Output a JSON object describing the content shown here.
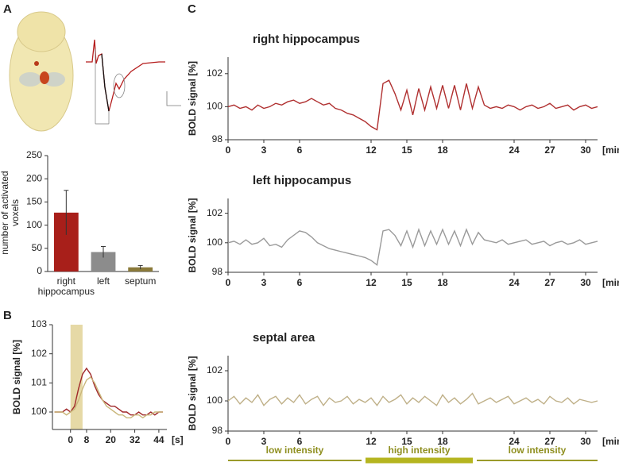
{
  "panels": [
    "A",
    "B",
    "C"
  ],
  "protocol": [
    "low intensity",
    "high intensity",
    "low intensity"
  ],
  "chart_data": [
    {
      "type": "bar",
      "ylabel": "number of activated voxels",
      "categories": [
        "right hippocampus",
        "left",
        "septum"
      ],
      "values": [
        127,
        42,
        9
      ],
      "errors": [
        48,
        12,
        4
      ],
      "colors": [
        "#a81f1a",
        "#8c8c8c",
        "#8a7a3a"
      ],
      "ylim": [
        0,
        250
      ],
      "yticks": [
        0,
        50,
        100,
        150,
        200,
        250
      ]
    },
    {
      "type": "line",
      "ylabel": "BOLD signal [%]",
      "xlabel": "[s]",
      "shade": [
        0,
        6
      ],
      "shade_color": "#e6d9a6",
      "x": [
        -8,
        -6,
        -4,
        -2,
        0,
        2,
        4,
        6,
        8,
        10,
        12,
        14,
        16,
        18,
        20,
        22,
        24,
        26,
        28,
        30,
        32,
        34,
        36,
        38,
        40,
        42,
        44,
        46
      ],
      "series": [
        {
          "color": "#a0282a",
          "values": [
            100,
            100,
            100,
            100.1,
            100,
            100.2,
            100.8,
            101.3,
            101.5,
            101.3,
            100.9,
            100.6,
            100.4,
            100.3,
            100.2,
            100.2,
            100.1,
            100,
            100,
            99.9,
            99.9,
            100,
            99.9,
            99.9,
            100,
            99.9,
            100,
            100
          ]
        },
        {
          "color": "#c9b67a",
          "values": [
            100,
            100,
            100,
            99.9,
            100,
            100.1,
            100.4,
            100.8,
            101.1,
            101.2,
            101,
            100.7,
            100.4,
            100.2,
            100.1,
            100,
            99.9,
            99.9,
            99.8,
            99.8,
            99.9,
            99.9,
            99.8,
            99.9,
            99.9,
            100,
            100,
            100
          ]
        }
      ],
      "xlim": [
        -9,
        48
      ],
      "xticks": [
        0,
        8,
        20,
        32,
        44
      ],
      "ylim": [
        99.4,
        103
      ],
      "yticks": [
        100,
        101,
        102,
        103
      ]
    },
    {
      "type": "line",
      "title": "right hippocampus",
      "ylabel": "BOLD signal [%]",
      "xlabel": "[min]",
      "x": [
        0,
        0.5,
        1,
        1.5,
        2,
        2.5,
        3,
        3.5,
        4,
        4.5,
        5,
        5.5,
        6,
        6.5,
        7,
        7.5,
        8,
        8.5,
        9,
        9.5,
        10,
        10.5,
        11,
        11.5,
        12,
        12.5,
        13,
        13.5,
        14,
        14.5,
        15,
        15.5,
        16,
        16.5,
        17,
        17.5,
        18,
        18.5,
        19,
        19.5,
        20,
        20.5,
        21,
        21.5,
        22,
        22.5,
        23,
        23.5,
        24,
        24.5,
        25,
        25.5,
        26,
        26.5,
        27,
        27.5,
        28,
        28.5,
        29,
        29.5,
        30,
        30.5,
        31
      ],
      "series": [
        {
          "color": "#b03030",
          "values": [
            100,
            100.1,
            99.9,
            100,
            99.8,
            100.1,
            99.9,
            100,
            100.2,
            100.1,
            100.3,
            100.4,
            100.2,
            100.3,
            100.5,
            100.3,
            100.1,
            100.2,
            99.9,
            99.8,
            99.6,
            99.5,
            99.3,
            99.1,
            98.8,
            98.6,
            101.4,
            101.6,
            100.8,
            99.8,
            101,
            99.5,
            101.1,
            99.8,
            101.2,
            99.9,
            101.3,
            99.9,
            101.3,
            99.8,
            101.4,
            99.9,
            101.2,
            100.1,
            99.9,
            100,
            99.9,
            100.1,
            100,
            99.8,
            100,
            100.1,
            99.9,
            100,
            100.2,
            99.9,
            100,
            100.1,
            99.8,
            100,
            100.1,
            99.9,
            100
          ]
        }
      ],
      "xlim": [
        0,
        31
      ],
      "xticks": [
        0,
        3,
        6,
        12,
        15,
        18,
        24,
        27,
        30
      ],
      "ylim": [
        98,
        103
      ],
      "yticks": [
        98,
        100,
        102
      ]
    },
    {
      "type": "line",
      "title": "left hippocampus",
      "ylabel": "BOLD signal [%]",
      "xlabel": "[min]",
      "x": [
        0,
        0.5,
        1,
        1.5,
        2,
        2.5,
        3,
        3.5,
        4,
        4.5,
        5,
        5.5,
        6,
        6.5,
        7,
        7.5,
        8,
        8.5,
        9,
        9.5,
        10,
        10.5,
        11,
        11.5,
        12,
        12.5,
        13,
        13.5,
        14,
        14.5,
        15,
        15.5,
        16,
        16.5,
        17,
        17.5,
        18,
        18.5,
        19,
        19.5,
        20,
        20.5,
        21,
        21.5,
        22,
        22.5,
        23,
        23.5,
        24,
        24.5,
        25,
        25.5,
        26,
        26.5,
        27,
        27.5,
        28,
        28.5,
        29,
        29.5,
        30,
        30.5,
        31
      ],
      "series": [
        {
          "color": "#9a9a9a",
          "values": [
            100,
            100.1,
            99.9,
            100.2,
            99.9,
            100,
            100.3,
            99.8,
            99.9,
            99.7,
            100.2,
            100.5,
            100.8,
            100.7,
            100.4,
            100,
            99.8,
            99.6,
            99.5,
            99.4,
            99.3,
            99.2,
            99.1,
            99,
            98.8,
            98.5,
            100.8,
            100.9,
            100.5,
            99.8,
            100.8,
            99.7,
            100.9,
            99.8,
            100.8,
            99.9,
            100.9,
            99.9,
            100.8,
            99.8,
            100.9,
            99.9,
            100.7,
            100.2,
            100.1,
            100,
            100.2,
            99.9,
            100,
            100.1,
            100.2,
            99.9,
            100,
            100.1,
            99.8,
            100,
            100.1,
            99.9,
            100,
            100.2,
            99.9,
            100,
            100.1
          ]
        }
      ],
      "xlim": [
        0,
        31
      ],
      "xticks": [
        0,
        3,
        6,
        12,
        15,
        18,
        24,
        27,
        30
      ],
      "ylim": [
        98,
        103
      ],
      "yticks": [
        98,
        100,
        102
      ]
    },
    {
      "type": "line",
      "title": "septal area",
      "ylabel": "BOLD signal [%]",
      "xlabel": "[min]",
      "x": [
        0,
        0.5,
        1,
        1.5,
        2,
        2.5,
        3,
        3.5,
        4,
        4.5,
        5,
        5.5,
        6,
        6.5,
        7,
        7.5,
        8,
        8.5,
        9,
        9.5,
        10,
        10.5,
        11,
        11.5,
        12,
        12.5,
        13,
        13.5,
        14,
        14.5,
        15,
        15.5,
        16,
        16.5,
        17,
        17.5,
        18,
        18.5,
        19,
        19.5,
        20,
        20.5,
        21,
        21.5,
        22,
        22.5,
        23,
        23.5,
        24,
        24.5,
        25,
        25.5,
        26,
        26.5,
        27,
        27.5,
        28,
        28.5,
        29,
        29.5,
        30,
        30.5,
        31
      ],
      "series": [
        {
          "color": "#bfb088",
          "values": [
            100,
            100.3,
            99.8,
            100.2,
            99.9,
            100.4,
            99.7,
            100.1,
            100.3,
            99.8,
            100.2,
            99.9,
            100.4,
            99.8,
            100.1,
            100.3,
            99.7,
            100.2,
            99.9,
            100,
            100.3,
            99.8,
            100.1,
            99.9,
            100.2,
            99.7,
            100.3,
            99.9,
            100.1,
            100.4,
            99.8,
            100.2,
            99.9,
            100.3,
            100,
            99.7,
            100.4,
            99.9,
            100.2,
            99.8,
            100.1,
            100.5,
            99.8,
            100,
            100.2,
            99.9,
            100.1,
            100.3,
            99.8,
            100,
            100.2,
            99.9,
            100.1,
            99.8,
            100.3,
            100,
            99.9,
            100.2,
            99.8,
            100.1,
            100,
            99.9,
            100
          ]
        }
      ],
      "xlim": [
        0,
        31
      ],
      "xticks": [
        0,
        3,
        6,
        12,
        15,
        18,
        24,
        27,
        30
      ],
      "ylim": [
        98,
        103
      ],
      "yticks": [
        98,
        100,
        102
      ]
    }
  ]
}
